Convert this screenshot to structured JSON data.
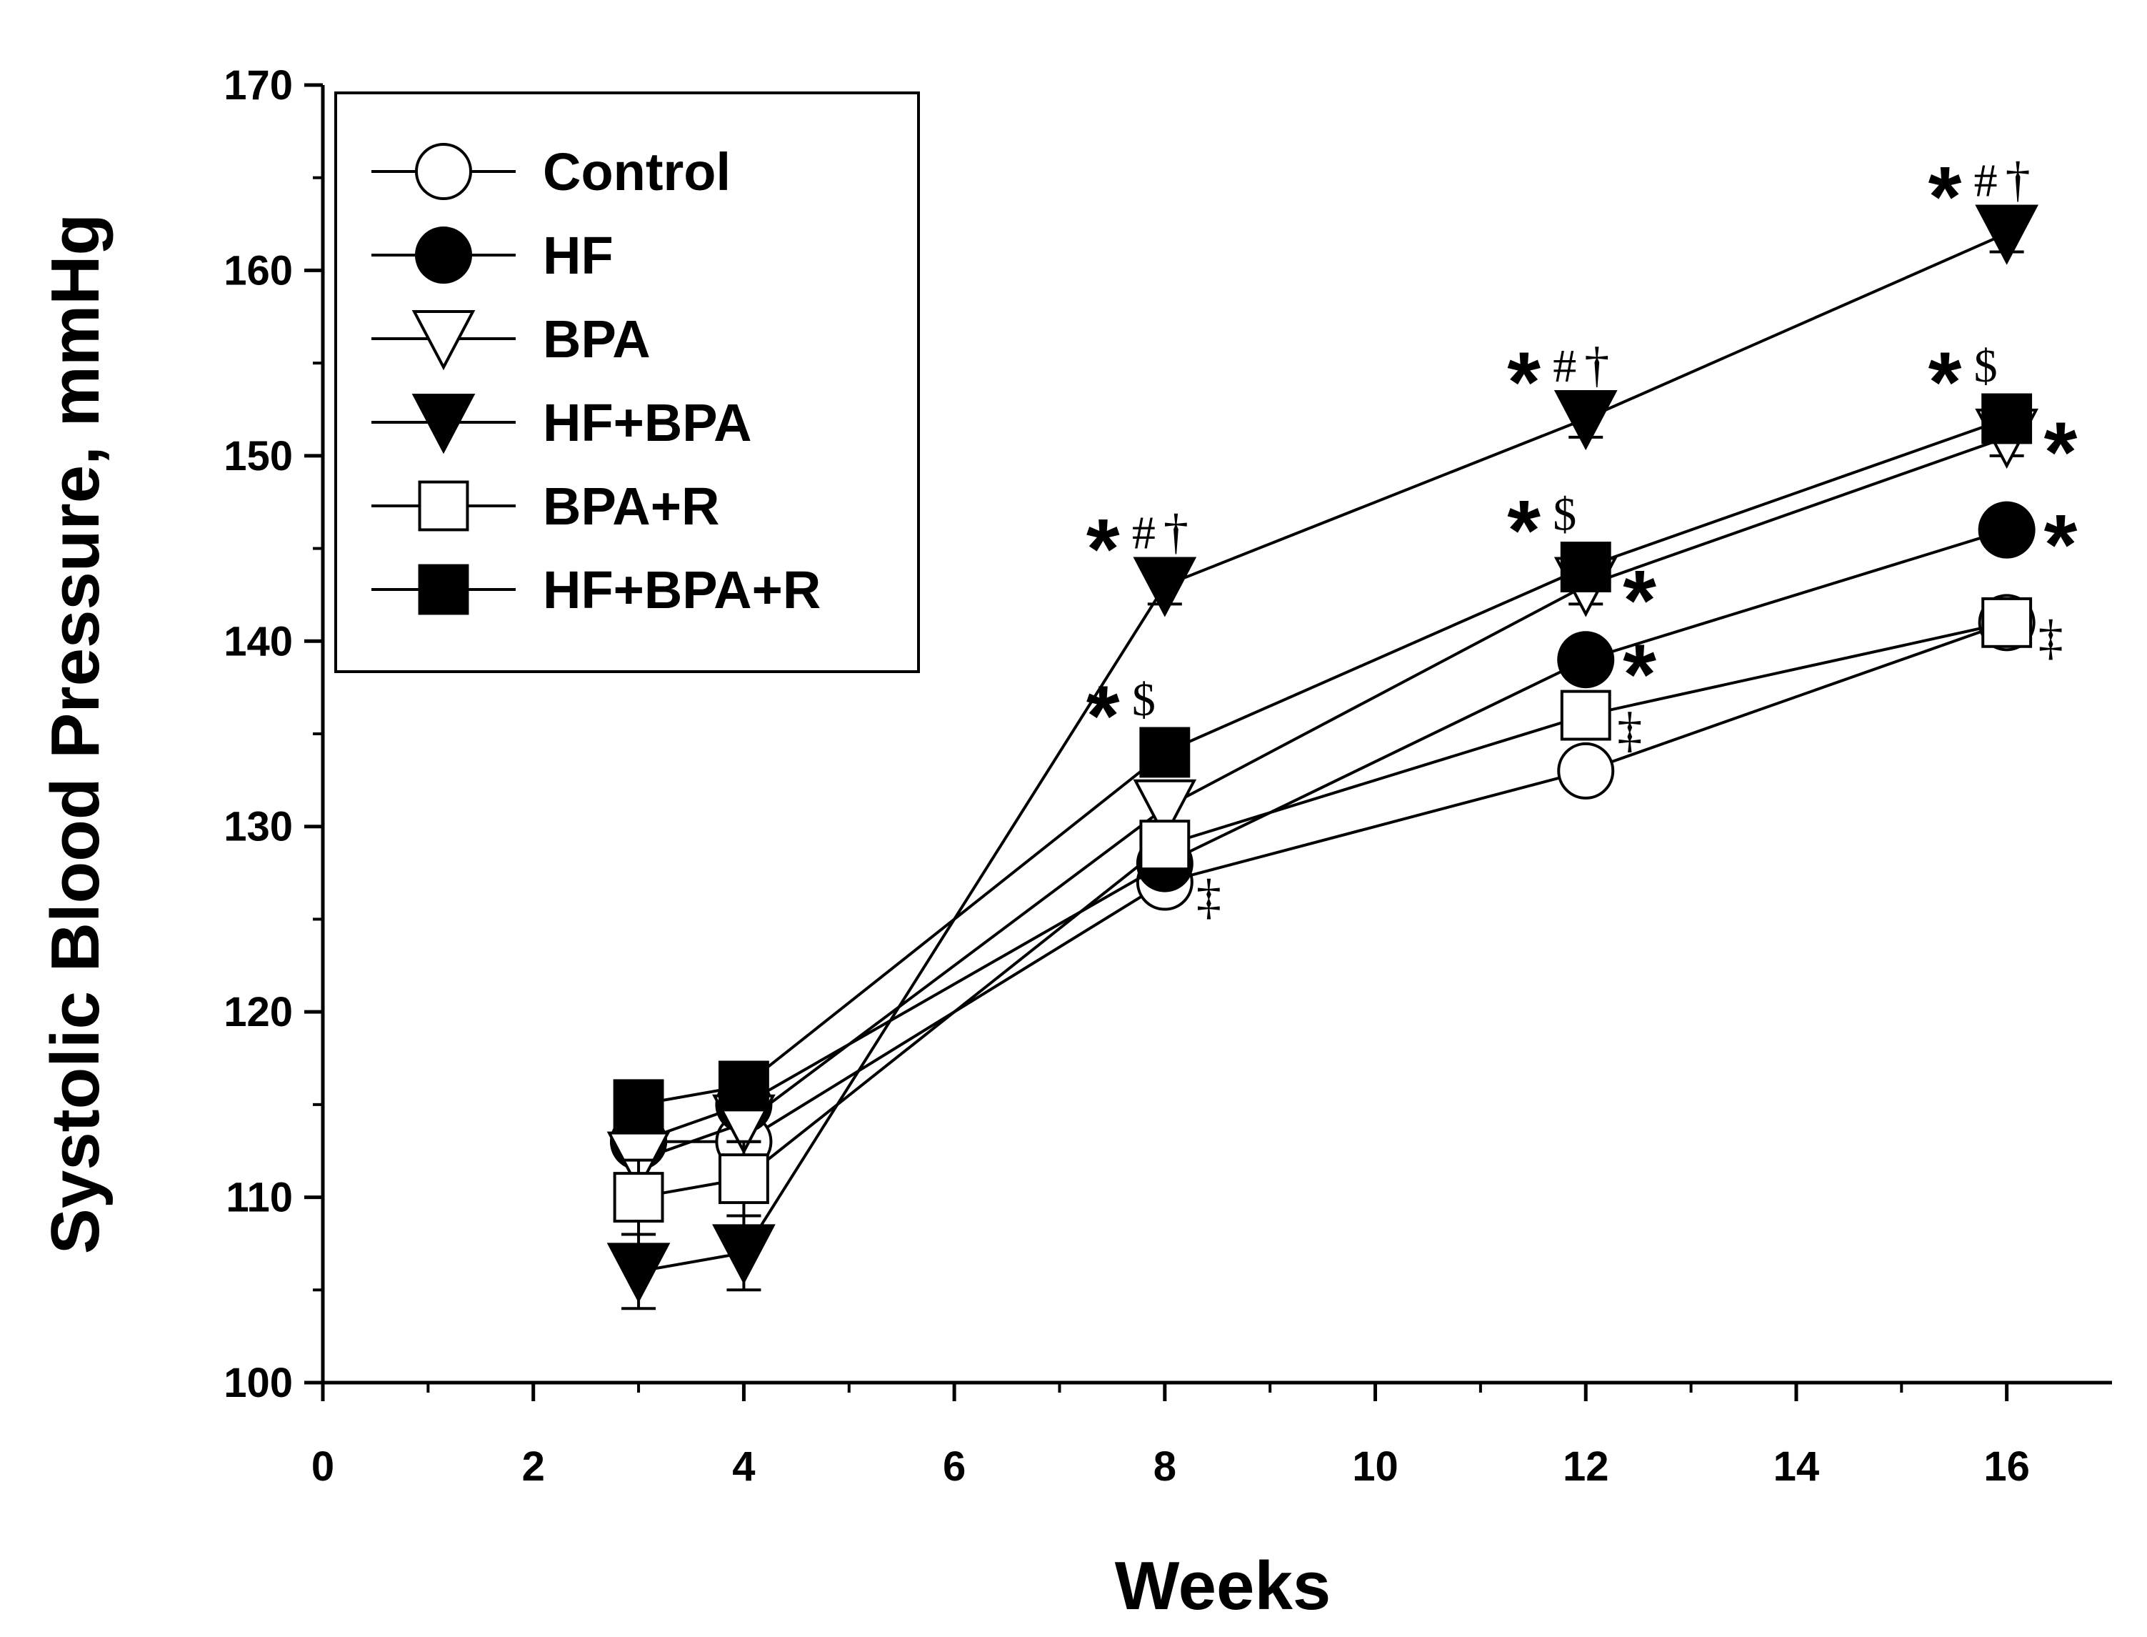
{
  "chart_data": {
    "type": "line",
    "title": "",
    "xlabel": "Weeks",
    "ylabel": "Systolic Blood Pressure, mmHg",
    "xlim": [
      0,
      17
    ],
    "ylim": [
      100,
      170
    ],
    "xticks": [
      0,
      2,
      4,
      6,
      8,
      10,
      12,
      14,
      16
    ],
    "yticks": [
      100,
      110,
      120,
      130,
      140,
      150,
      160,
      170
    ],
    "legend_position": "top-left",
    "series": [
      {
        "name": "Control",
        "marker": "circle",
        "fill": "open",
        "x": [
          3,
          4,
          8,
          12,
          16
        ],
        "y": [
          113,
          113,
          127,
          133,
          141
        ],
        "err": [
          1,
          1,
          1,
          1,
          1
        ]
      },
      {
        "name": "HF",
        "marker": "circle",
        "fill": "filled",
        "x": [
          3,
          4,
          8,
          12,
          16
        ],
        "y": [
          113,
          115,
          128,
          139,
          146
        ],
        "err": [
          1,
          1,
          1,
          1,
          1
        ]
      },
      {
        "name": "BPA",
        "marker": "triangle-down",
        "fill": "open",
        "x": [
          3,
          4,
          8,
          12,
          16
        ],
        "y": [
          112,
          114,
          131,
          143,
          151
        ],
        "err": [
          1,
          1,
          1,
          1,
          1
        ]
      },
      {
        "name": "HF+BPA",
        "marker": "triangle-down",
        "fill": "filled",
        "x": [
          3,
          4,
          8,
          12,
          16
        ],
        "y": [
          106,
          107,
          143,
          152,
          162
        ],
        "err": [
          2,
          2,
          1,
          1,
          1
        ]
      },
      {
        "name": "BPA+R",
        "marker": "square",
        "fill": "open",
        "x": [
          3,
          4,
          8,
          12,
          16
        ],
        "y": [
          110,
          111,
          129,
          136,
          141
        ],
        "err": [
          2,
          2,
          1,
          1,
          1
        ]
      },
      {
        "name": "HF+BPA+R",
        "marker": "square",
        "fill": "filled",
        "x": [
          3,
          4,
          8,
          12,
          16
        ],
        "y": [
          115,
          116,
          134,
          144,
          152
        ],
        "err": [
          1,
          1,
          1,
          1,
          1
        ]
      }
    ],
    "annotations": [
      {
        "x": 8,
        "y": 143,
        "series": "HF+BPA",
        "star": "*",
        "text": "#",
        "dagger": "†",
        "placement": "above"
      },
      {
        "x": 12,
        "y": 152,
        "series": "HF+BPA",
        "star": "*",
        "text": "#",
        "dagger": "†",
        "placement": "above"
      },
      {
        "x": 16,
        "y": 162,
        "series": "HF+BPA",
        "star": "*",
        "text": "#",
        "dagger": "†",
        "placement": "above"
      },
      {
        "x": 8,
        "y": 134,
        "series": "HF+BPA+R",
        "star": "*",
        "text": "$",
        "placement": "above"
      },
      {
        "x": 12,
        "y": 144,
        "series": "HF+BPA+R",
        "star": "*",
        "text": "$",
        "placement": "above"
      },
      {
        "x": 16,
        "y": 152,
        "series": "HF+BPA+R",
        "star": "*",
        "text": "$",
        "placement": "above"
      },
      {
        "x": 12,
        "y": 143,
        "series": "BPA",
        "star": "*",
        "placement": "right"
      },
      {
        "x": 16,
        "y": 151,
        "series": "BPA",
        "star": "*",
        "placement": "right"
      },
      {
        "x": 12,
        "y": 139,
        "series": "HF",
        "star": "*",
        "placement": "right"
      },
      {
        "x": 16,
        "y": 146,
        "series": "HF",
        "star": "*",
        "placement": "right"
      },
      {
        "x": 8,
        "y": 127,
        "series": "Control",
        "dagger": "‡",
        "placement": "right"
      },
      {
        "x": 12,
        "y": 136,
        "series": "BPA+R",
        "dagger": "‡",
        "placement": "right"
      },
      {
        "x": 16,
        "y": 141,
        "series": "Control",
        "dagger": "‡",
        "placement": "right"
      }
    ]
  }
}
